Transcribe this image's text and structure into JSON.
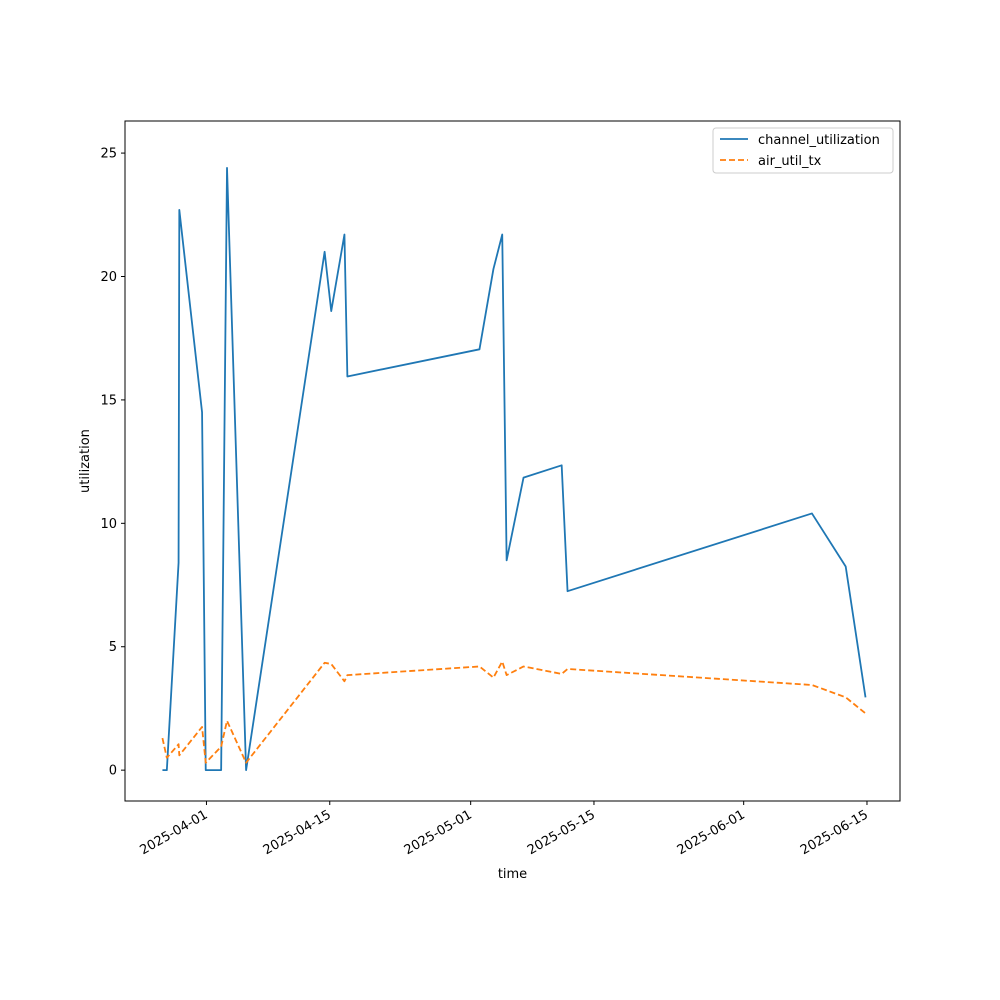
{
  "chart_data": {
    "type": "line",
    "title": "",
    "xlabel": "time",
    "ylabel": "utilization",
    "x_ticks": [
      "2025-04-01",
      "2025-04-15",
      "2025-05-01",
      "2025-05-15",
      "2025-06-01",
      "2025-06-15"
    ],
    "y_ticks": [
      0,
      5,
      10,
      15,
      20,
      25
    ],
    "xlim": [
      "2025-03-23",
      "2025-06-19"
    ],
    "ylim": [
      -1.25,
      26.3
    ],
    "grid": false,
    "legend_position": "top-right",
    "series": [
      {
        "name": "channel_utilization",
        "color": "#1f77b4",
        "dash": "solid",
        "points": [
          [
            "2025-03-27",
            0.0
          ],
          [
            "2025-03-27T12:00",
            0.0
          ],
          [
            "2025-03-28T20:00",
            8.4
          ],
          [
            "2025-03-28T22:00",
            22.7
          ],
          [
            "2025-03-31T12:00",
            14.5
          ],
          [
            "2025-03-31T22:00",
            0.0
          ],
          [
            "2025-04-02T16:00",
            0.0
          ],
          [
            "2025-04-03T08:00",
            24.4
          ],
          [
            "2025-04-05T12:00",
            0.0
          ],
          [
            "2025-04-14T10:00",
            21.0
          ],
          [
            "2025-04-15T04:00",
            18.6
          ],
          [
            "2025-04-16T16:00",
            21.7
          ],
          [
            "2025-04-17",
            15.95
          ],
          [
            "2025-05-02",
            17.05
          ],
          [
            "2025-05-03T14:00",
            20.3
          ],
          [
            "2025-05-04T14:00",
            21.7
          ],
          [
            "2025-05-05T02:00",
            8.5
          ],
          [
            "2025-05-07",
            11.85
          ],
          [
            "2025-05-11T08:00",
            12.35
          ],
          [
            "2025-05-12",
            7.25
          ],
          [
            "2025-06-08T18:00",
            10.4
          ],
          [
            "2025-06-12T14:00",
            8.25
          ],
          [
            "2025-06-14T20:00",
            2.95
          ]
        ]
      },
      {
        "name": "air_util_tx",
        "color": "#ff7f0e",
        "dash": "dashed",
        "points": [
          [
            "2025-03-27",
            1.3
          ],
          [
            "2025-03-27T12:00",
            0.5
          ],
          [
            "2025-03-28T20:00",
            1.05
          ],
          [
            "2025-03-28T22:00",
            0.6
          ],
          [
            "2025-03-31T12:00",
            1.75
          ],
          [
            "2025-03-31T22:00",
            0.3
          ],
          [
            "2025-04-02T16:00",
            0.95
          ],
          [
            "2025-04-03T08:00",
            2.0
          ],
          [
            "2025-04-05T12:00",
            0.3
          ],
          [
            "2025-04-14T10:00",
            4.35
          ],
          [
            "2025-04-15T04:00",
            4.3
          ],
          [
            "2025-04-16T16:00",
            3.6
          ],
          [
            "2025-04-17",
            3.85
          ],
          [
            "2025-05-02",
            4.2
          ],
          [
            "2025-05-03T14:00",
            3.75
          ],
          [
            "2025-05-04T14:00",
            4.4
          ],
          [
            "2025-05-05T02:00",
            3.85
          ],
          [
            "2025-05-07",
            4.2
          ],
          [
            "2025-05-11T08:00",
            3.9
          ],
          [
            "2025-05-12",
            4.1
          ],
          [
            "2025-06-08T18:00",
            3.45
          ],
          [
            "2025-06-12T14:00",
            2.95
          ],
          [
            "2025-06-14T20:00",
            2.3
          ]
        ]
      }
    ]
  }
}
